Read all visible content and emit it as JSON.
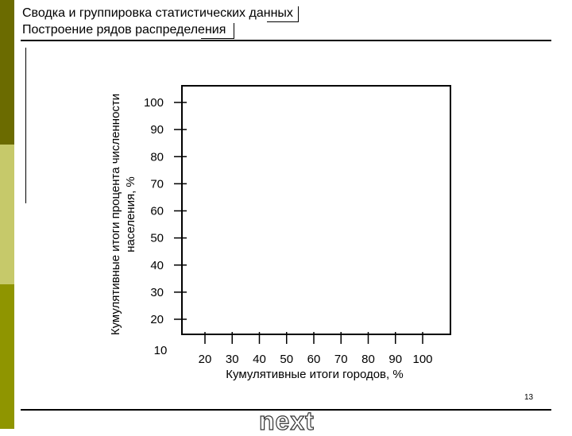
{
  "header": {
    "title_line1": "Сводка и группировка статистических данных",
    "title_line2": "Построение рядов распределения"
  },
  "footer": {
    "slide_number": "13",
    "next_label": "next"
  },
  "colors": {
    "sidebar_dark": "#6b6b00",
    "sidebar_light": "#c6c96a",
    "sidebar_mid": "#8f9500"
  },
  "chart_data": {
    "type": "line",
    "title": "",
    "xlabel": "Кумулятивные итоги городов, %",
    "ylabel_line1": "Кумулятивные итоги процента численности",
    "ylabel_line2": "населения, %",
    "x_ticks": [
      "20",
      "30",
      "40",
      "50",
      "60",
      "70",
      "80",
      "90",
      "100"
    ],
    "y_ticks": [
      "20",
      "30",
      "40",
      "50",
      "60",
      "70",
      "80",
      "90",
      "100"
    ],
    "corner_label": "10",
    "xlim": [
      10,
      100
    ],
    "ylim": [
      10,
      100
    ],
    "grid": false,
    "series": []
  }
}
